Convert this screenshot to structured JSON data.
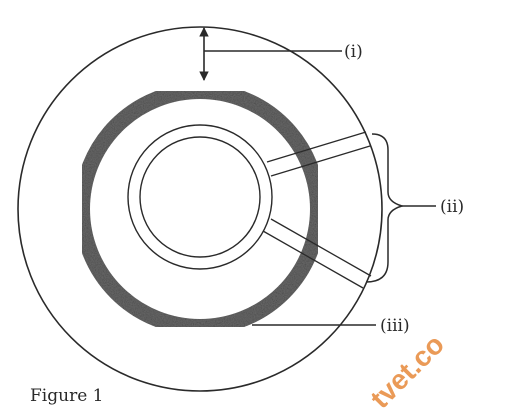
{
  "labels": {
    "i": "(i)",
    "ii": "(ii)",
    "iii": "(iii)"
  },
  "caption": "Figure 1",
  "watermark": "tvet.co",
  "colors": {
    "ink": "#2a2a2a",
    "ring_fill": "#6a6a6a",
    "watermark": "#e7893a"
  }
}
